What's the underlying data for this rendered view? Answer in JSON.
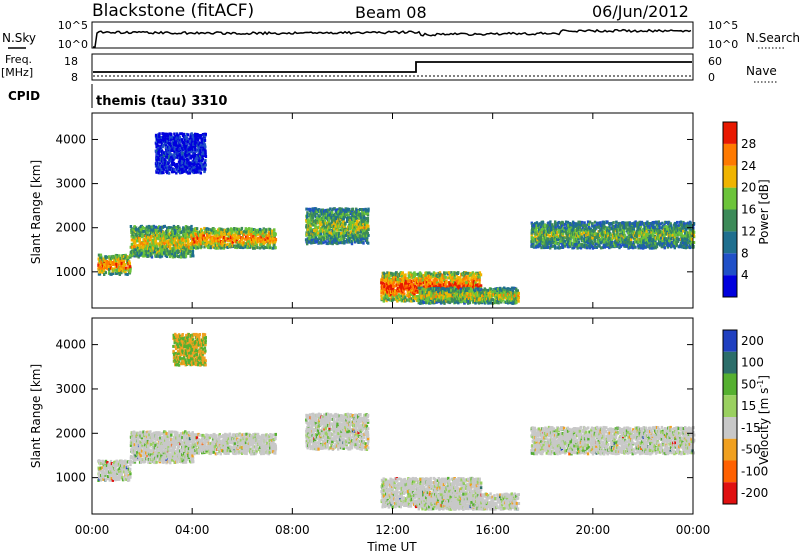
{
  "header": {
    "station": "Blackstone (fitACF)",
    "beam": "Beam 08",
    "date": "06/Jun/2012"
  },
  "strips": {
    "nsky_label": "N.Sky",
    "nsearch_label": "N.Search",
    "noise_ticks": [
      "10^5",
      "10^0"
    ],
    "freq_label_1": "Freq.",
    "freq_label_2": "[MHz]",
    "freq_ticks": [
      18,
      8
    ],
    "nave_label": "Nave",
    "nave_ticks": [
      60,
      0
    ],
    "cpid_label": "CPID",
    "cpid_value": "themis (tau) 3310"
  },
  "chart_data": [
    {
      "type": "heatmap",
      "xlabel": "Time UT",
      "ylabel": "Slant Range [km]",
      "x_ticks": [
        "00:00",
        "04:00",
        "08:00",
        "12:00",
        "16:00",
        "20:00",
        "00:00"
      ],
      "x_range_hours": [
        0,
        24
      ],
      "y_range": [
        180,
        4600
      ],
      "y_ticks": [
        1000,
        2000,
        3000,
        4000
      ],
      "colorbar": {
        "label": "Power [dB]",
        "ticks": [
          4,
          8,
          12,
          16,
          20,
          24,
          28
        ],
        "colors": [
          "#0000dd",
          "#2050c8",
          "#1f6f8f",
          "#3c8a58",
          "#6cc43a",
          "#f0b400",
          "#ff7a00",
          "#e81800"
        ]
      },
      "echo_bands": [
        {
          "t0": 0.2,
          "t1": 1.5,
          "r0": 900,
          "r1": 1350,
          "level": 0.85
        },
        {
          "t0": 1.5,
          "t1": 4.0,
          "r0": 1300,
          "r1": 2000,
          "level": 0.7
        },
        {
          "t0": 4.0,
          "t1": 7.3,
          "r0": 1500,
          "r1": 1950,
          "level": 0.85
        },
        {
          "t0": 8.5,
          "t1": 11.0,
          "r0": 1600,
          "r1": 2400,
          "level": 0.6
        },
        {
          "t0": 11.5,
          "t1": 15.5,
          "r0": 300,
          "r1": 950,
          "level": 0.95
        },
        {
          "t0": 13.0,
          "t1": 17.0,
          "r0": 250,
          "r1": 600,
          "level": 0.7
        },
        {
          "t0": 17.5,
          "t1": 24.0,
          "r0": 1500,
          "r1": 2100,
          "level": 0.55
        },
        {
          "t0": 2.5,
          "t1": 4.5,
          "r0": 3200,
          "r1": 4100,
          "level": 0.1
        }
      ]
    },
    {
      "type": "heatmap",
      "xlabel": "Time UT",
      "ylabel": "Slant Range [km]",
      "x_ticks": [
        "00:00",
        "04:00",
        "08:00",
        "12:00",
        "16:00",
        "20:00",
        "00:00"
      ],
      "x_range_hours": [
        0,
        24
      ],
      "y_range": [
        180,
        4600
      ],
      "y_ticks": [
        1000,
        2000,
        3000,
        4000
      ],
      "colorbar": {
        "label": "Velocity [m s",
        "label_sup": "-1",
        "label_close": "]",
        "ticks": [
          200,
          100,
          50,
          15,
          -15,
          -50,
          -100,
          -200
        ],
        "colors": [
          "#2040c0",
          "#2c6e6a",
          "#55b030",
          "#9ad060",
          "#c8c8c8",
          "#f0a020",
          "#ff6000",
          "#e01010"
        ]
      },
      "echo_bands": [
        {
          "t0": 0.2,
          "t1": 1.5,
          "r0": 900,
          "r1": 1350,
          "level": 0.5
        },
        {
          "t0": 1.5,
          "t1": 4.0,
          "r0": 1300,
          "r1": 2000,
          "level": 0.55
        },
        {
          "t0": 4.0,
          "t1": 7.3,
          "r0": 1500,
          "r1": 1950,
          "level": 0.5
        },
        {
          "t0": 8.5,
          "t1": 11.0,
          "r0": 1600,
          "r1": 2400,
          "level": 0.45
        },
        {
          "t0": 11.5,
          "t1": 15.5,
          "r0": 300,
          "r1": 950,
          "level": 0.5
        },
        {
          "t0": 13.0,
          "t1": 17.0,
          "r0": 250,
          "r1": 600,
          "level": 0.5
        },
        {
          "t0": 17.5,
          "t1": 24.0,
          "r0": 1500,
          "r1": 2100,
          "level": 0.5
        },
        {
          "t0": 3.2,
          "t1": 4.5,
          "r0": 3500,
          "r1": 4200,
          "level": 0.25
        }
      ]
    }
  ]
}
